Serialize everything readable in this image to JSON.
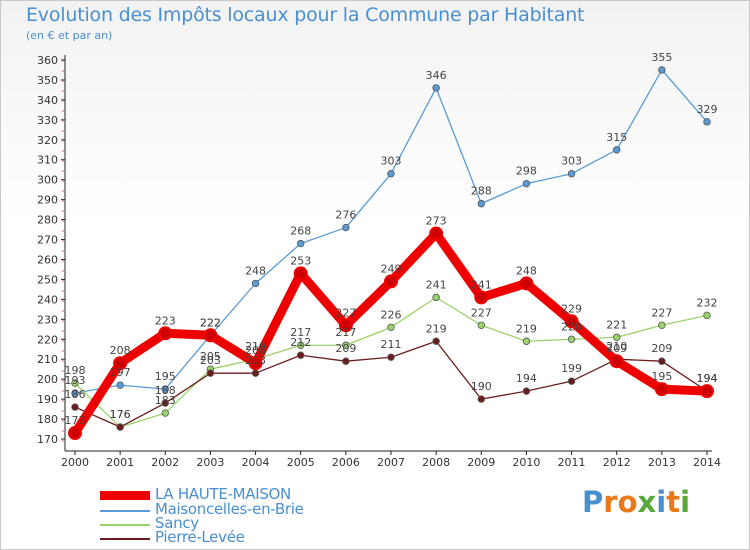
{
  "header": {
    "title": "Evolution des Impôts locaux pour la Commune par Habitant",
    "subtitle": "(en € et par an)"
  },
  "logo": {
    "text": "Proxiti",
    "letters": [
      "P",
      "r",
      "o",
      "x",
      "i",
      "t",
      "i"
    ],
    "colors": [
      "#4a8fd0",
      "#e87a1a",
      "#e87a1a",
      "#5aa83a",
      "#4a8fd0",
      "#e87a1a",
      "#5aa83a"
    ]
  },
  "chart_data": {
    "type": "line",
    "title": "Evolution des Impôts locaux pour la Commune par Habitant",
    "subtitle": "(en € et par an)",
    "xlabel": "",
    "ylabel": "",
    "x": [
      2000,
      2001,
      2002,
      2003,
      2004,
      2005,
      2006,
      2007,
      2008,
      2009,
      2010,
      2011,
      2012,
      2013,
      2014
    ],
    "ylim": [
      170,
      360
    ],
    "yticks": [
      170,
      180,
      190,
      200,
      210,
      220,
      230,
      240,
      250,
      260,
      270,
      280,
      290,
      300,
      310,
      320,
      330,
      340,
      350,
      360
    ],
    "grid": false,
    "legend_position": "bottom-left",
    "series": [
      {
        "name": "Maisoncelles-en-Brie",
        "color": "#5a9bd5",
        "values": [
          193,
          197,
          195,
          222,
          248,
          268,
          276,
          303,
          346,
          288,
          298,
          303,
          315,
          355,
          329
        ]
      },
      {
        "name": "Sancy",
        "color": "#99d36b",
        "values": [
          198,
          176,
          183,
          205,
          210,
          217,
          217,
          226,
          241,
          227,
          219,
          220,
          221,
          227,
          232
        ]
      },
      {
        "name": "Pierre-Levée",
        "color": "#6b1d1d",
        "values": [
          186,
          176,
          188,
          203,
          203,
          212,
          209,
          211,
          219,
          190,
          194,
          199,
          210,
          209,
          194
        ]
      },
      {
        "name": "LA HAUTE-MAISON",
        "color": "#ee0000",
        "values": [
          173,
          208,
          223,
          222,
          208,
          253,
          227,
          249,
          273,
          241,
          248,
          229,
          209,
          195,
          194
        ]
      }
    ]
  }
}
